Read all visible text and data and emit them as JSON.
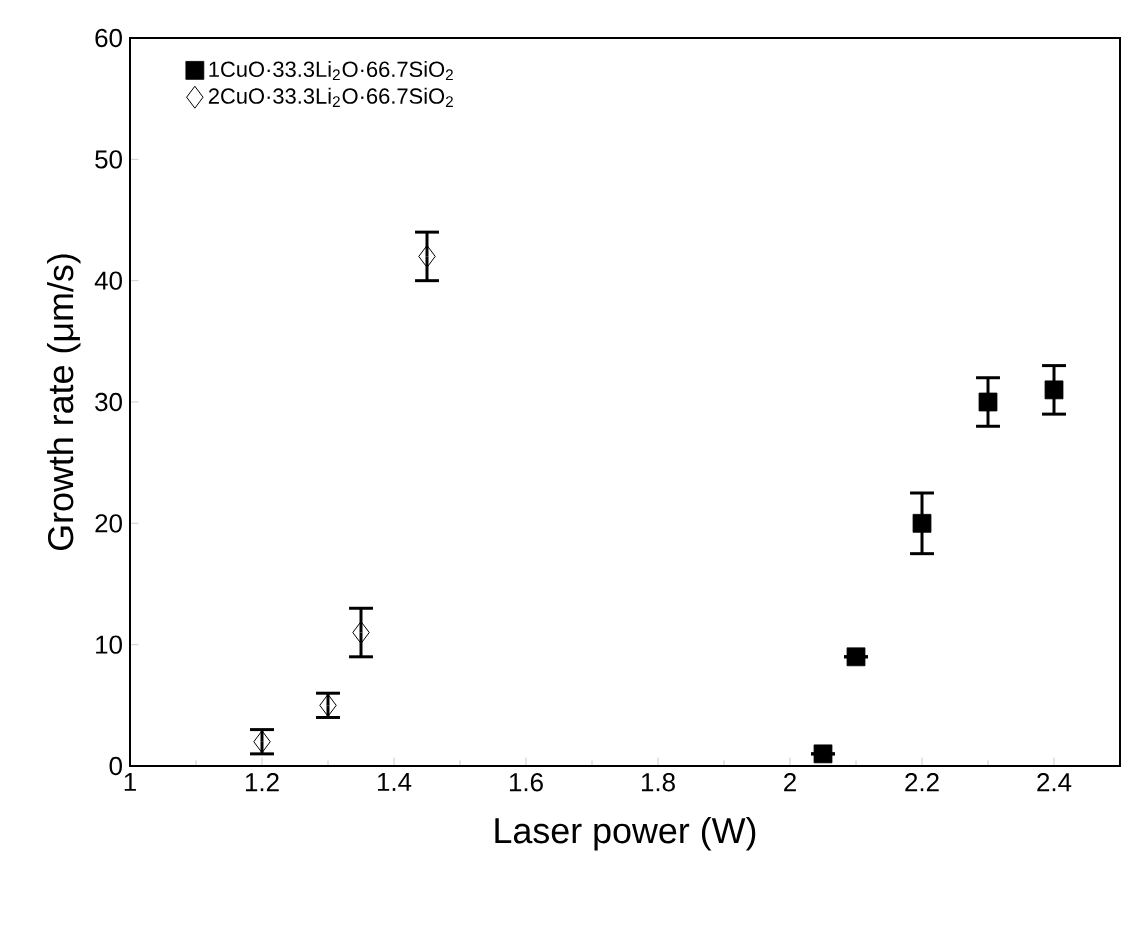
{
  "chart_data": {
    "type": "scatter",
    "xlabel": "Laser power (W)",
    "ylabel": "Growth rate (μm/s)",
    "xlim": [
      1,
      2.5
    ],
    "xticks": [
      1,
      1.2,
      1.4,
      1.6,
      1.8,
      2,
      2.2,
      2.4
    ],
    "ylim": [
      0,
      60
    ],
    "yticks": [
      0,
      10,
      20,
      30,
      40,
      50,
      60
    ],
    "legend": "top left",
    "grid": false,
    "series": [
      {
        "name": "1CuO·33.3Li$_{2}$O·66.7SiO$_{2}$",
        "color": "#000000",
        "marker": "square",
        "x": [
          2.05,
          2.1,
          2.2,
          2.3,
          2.4
        ],
        "values": [
          1,
          9,
          20,
          30,
          31
        ],
        "errors": [
          null,
          null,
          2.5,
          2,
          2
        ]
      },
      {
        "name": "2CuO·33.3Li$_{2}$O·66.7SiO$_{2}$",
        "color": "#000000",
        "marker": "diamond",
        "x": [
          1.2,
          1.3,
          1.35,
          1.45
        ],
        "values": [
          2,
          5,
          11,
          42
        ],
        "errors": [
          1,
          1,
          2,
          2
        ]
      }
    ]
  }
}
